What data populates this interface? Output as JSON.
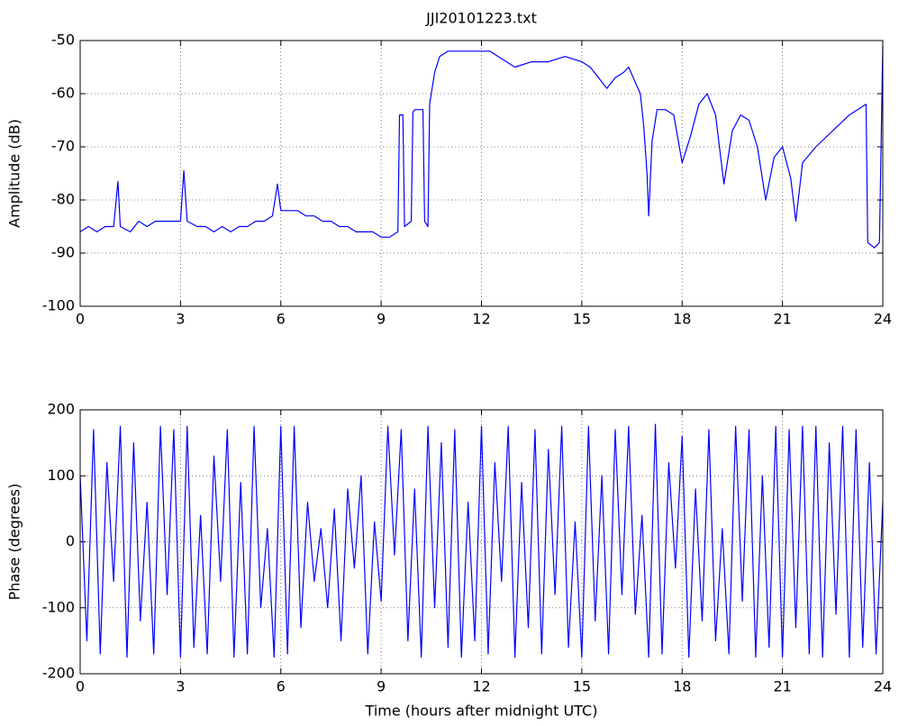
{
  "chart_data": [
    {
      "type": "line",
      "title": "JJI20101223.txt",
      "y_label": "Amplitude (dB)",
      "grid": true,
      "xlim": [
        0,
        24
      ],
      "xticks": [
        0,
        3,
        6,
        9,
        12,
        15,
        18,
        21,
        24
      ],
      "ylim": [
        -100,
        -50
      ],
      "yticks": [
        -100,
        -90,
        -80,
        -70,
        -60,
        -50
      ],
      "series": [
        {
          "color": "#0000ff",
          "x": [
            0,
            0.25,
            0.5,
            0.75,
            1.0,
            1.13,
            1.2,
            1.5,
            1.75,
            2.0,
            2.25,
            2.5,
            2.75,
            3.0,
            3.1,
            3.2,
            3.5,
            3.75,
            4.0,
            4.25,
            4.5,
            4.75,
            5.0,
            5.25,
            5.5,
            5.75,
            5.9,
            6.0,
            6.25,
            6.5,
            6.75,
            7.0,
            7.25,
            7.5,
            7.75,
            8.0,
            8.25,
            8.5,
            8.75,
            9.0,
            9.25,
            9.5,
            9.55,
            9.65,
            9.7,
            9.9,
            9.95,
            10.0,
            10.1,
            10.25,
            10.3,
            10.4,
            10.45,
            10.5,
            10.6,
            10.75,
            11.0,
            11.5,
            12.0,
            12.25,
            12.5,
            13.0,
            13.5,
            14.0,
            14.5,
            15.0,
            15.25,
            15.5,
            15.75,
            16.0,
            16.25,
            16.4,
            16.75,
            16.85,
            16.95,
            17.0,
            17.1,
            17.25,
            17.5,
            17.75,
            18.0,
            18.25,
            18.5,
            18.75,
            19.0,
            19.25,
            19.5,
            19.75,
            20.0,
            20.25,
            20.5,
            20.75,
            21.0,
            21.25,
            21.4,
            21.6,
            22.0,
            22.5,
            23.0,
            23.5,
            23.55,
            23.75,
            23.9,
            24.0
          ],
          "values": [
            -86,
            -85,
            -86,
            -85,
            -85,
            -76.5,
            -85,
            -86,
            -84,
            -85,
            -84,
            -84,
            -84,
            -84,
            -74.5,
            -84,
            -85,
            -85,
            -86,
            -85,
            -86,
            -85,
            -85,
            -84,
            -84,
            -83,
            -77,
            -82,
            -82,
            -82,
            -83,
            -83,
            -84,
            -84,
            -85,
            -85,
            -86,
            -86,
            -86,
            -87,
            -87,
            -86,
            -64,
            -64,
            -85,
            -84,
            -63.5,
            -63,
            -63,
            -63,
            -84,
            -85,
            -62,
            -60,
            -56,
            -53,
            -52,
            -52,
            -52,
            -52,
            -53,
            -55,
            -54,
            -54,
            -53,
            -54,
            -55,
            -57,
            -59,
            -57,
            -56,
            -55,
            -60,
            -66,
            -75,
            -83,
            -69,
            -63,
            -63,
            -64,
            -73,
            -68,
            -62,
            -60,
            -64,
            -77,
            -67,
            -64,
            -65,
            -70,
            -80,
            -72,
            -70,
            -76,
            -84,
            -73,
            -70,
            -67,
            -64,
            -62,
            -88,
            -89,
            -88,
            -51
          ]
        }
      ]
    },
    {
      "type": "line",
      "y_label": "Phase (degrees)",
      "x_label": "Time (hours after midnight UTC)",
      "grid": true,
      "xlim": [
        0,
        24
      ],
      "xticks": [
        0,
        3,
        6,
        9,
        12,
        15,
        18,
        21,
        24
      ],
      "ylim": [
        -200,
        200
      ],
      "yticks": [
        -200,
        -100,
        0,
        100,
        200
      ],
      "series": [
        {
          "color": "#0000ff",
          "x": [
            0,
            0.2,
            0.4,
            0.6,
            0.8,
            1.0,
            1.2,
            1.4,
            1.6,
            1.8,
            2.0,
            2.2,
            2.4,
            2.6,
            2.8,
            3.0,
            3.2,
            3.4,
            3.6,
            3.8,
            4.0,
            4.2,
            4.4,
            4.6,
            4.8,
            5.0,
            5.2,
            5.4,
            5.6,
            5.8,
            6.0,
            6.2,
            6.4,
            6.6,
            6.8,
            7.0,
            7.2,
            7.4,
            7.6,
            7.8,
            8.0,
            8.2,
            8.4,
            8.6,
            8.8,
            9.0,
            9.2,
            9.4,
            9.6,
            9.8,
            10.0,
            10.2,
            10.4,
            10.6,
            10.8,
            11.0,
            11.2,
            11.4,
            11.6,
            11.8,
            12.0,
            12.2,
            12.4,
            12.6,
            12.8,
            13.0,
            13.2,
            13.4,
            13.6,
            13.8,
            14.0,
            14.2,
            14.4,
            14.6,
            14.8,
            15.0,
            15.2,
            15.4,
            15.6,
            15.8,
            16.0,
            16.2,
            16.4,
            16.6,
            16.8,
            17.0,
            17.2,
            17.4,
            17.6,
            17.8,
            18.0,
            18.2,
            18.4,
            18.6,
            18.8,
            19.0,
            19.2,
            19.4,
            19.6,
            19.8,
            20.0,
            20.2,
            20.4,
            20.6,
            20.8,
            21.0,
            21.2,
            21.4,
            21.6,
            21.8,
            22.0,
            22.2,
            22.4,
            22.6,
            22.8,
            23.0,
            23.2,
            23.4,
            23.6,
            23.8,
            24.0
          ],
          "values": [
            100,
            -150,
            170,
            -170,
            120,
            -60,
            175,
            -175,
            150,
            -120,
            60,
            -170,
            175,
            -80,
            170,
            -175,
            175,
            -160,
            40,
            -170,
            130,
            -60,
            170,
            -175,
            90,
            -170,
            175,
            -100,
            20,
            -175,
            175,
            -170,
            175,
            -130,
            60,
            -60,
            20,
            -100,
            50,
            -150,
            80,
            -40,
            100,
            -170,
            30,
            -90,
            175,
            -20,
            170,
            -150,
            80,
            -175,
            175,
            -100,
            150,
            -160,
            170,
            -175,
            60,
            -150,
            175,
            -170,
            120,
            -60,
            175,
            -175,
            90,
            -130,
            170,
            -170,
            140,
            -80,
            175,
            -160,
            30,
            -175,
            175,
            -120,
            100,
            -170,
            170,
            -80,
            175,
            -110,
            40,
            -175,
            178,
            -170,
            120,
            -40,
            160,
            -175,
            80,
            -120,
            170,
            -150,
            20,
            -170,
            175,
            -90,
            170,
            -175,
            100,
            -160,
            175,
            -175,
            170,
            -130,
            175,
            -170,
            175,
            -175,
            150,
            -110,
            175,
            -175,
            170,
            -160,
            120,
            -170,
            60
          ]
        }
      ]
    }
  ]
}
